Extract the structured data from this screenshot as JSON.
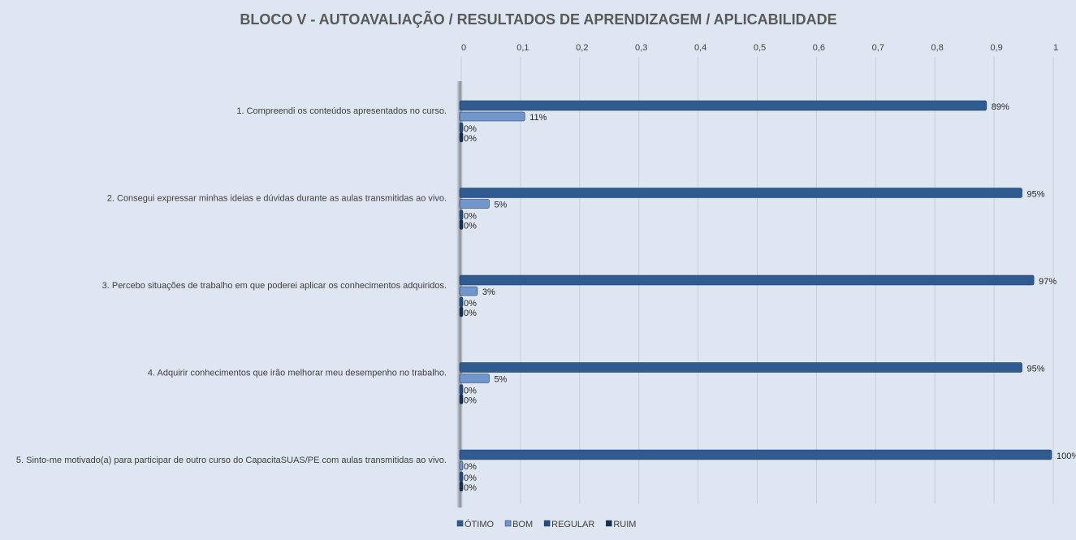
{
  "chart_data": {
    "type": "bar",
    "orientation": "horizontal",
    "title": "BLOCO V - AUTOAVALIAÇÃO / RESULTADOS DE APRENDIZAGEM / APLICABILIDADE",
    "xlim": [
      0,
      1
    ],
    "x_ticks": [
      "0",
      "0,1",
      "0,2",
      "0,3",
      "0,4",
      "0,5",
      "0,6",
      "0,7",
      "0,8",
      "0,9",
      "1"
    ],
    "grid": true,
    "legend_position": "bottom",
    "categories": [
      "1. Compreendi os conteúdos apresentados no curso.",
      "2. Consegui expressar minhas ideias e dúvidas durante as aulas transmitidas ao vivo.",
      "3. Percebo situações de trabalho em que poderei aplicar os conhecimentos adquiridos.",
      "4. Adquirir conhecimentos que irão melhorar meu desempenho no trabalho.",
      "5. Sinto-me motivado(a) para participar de outro curso do CapacitaSUAS/PE com aulas transmitidas ao vivo."
    ],
    "series": [
      {
        "name": "ÓTIMO",
        "color": "#2f5b91",
        "values": [
          0.89,
          0.95,
          0.97,
          0.95,
          1.0
        ],
        "labels": [
          "89%",
          "95%",
          "97%",
          "95%",
          "100%"
        ]
      },
      {
        "name": "BOM",
        "color": "#7096cc",
        "values": [
          0.11,
          0.05,
          0.03,
          0.05,
          0
        ],
        "labels": [
          "11%",
          "5%",
          "3%",
          "5%",
          "0%"
        ]
      },
      {
        "name": "REGULAR",
        "color": "#224d80",
        "values": [
          0,
          0,
          0,
          0,
          0
        ],
        "labels": [
          "0%",
          "0%",
          "0%",
          "0%",
          "0%"
        ]
      },
      {
        "name": "RUIM",
        "color": "#172f50",
        "values": [
          0,
          0,
          0,
          0,
          0
        ],
        "labels": [
          "0%",
          "0%",
          "0%",
          "0%",
          "0%"
        ]
      }
    ]
  }
}
